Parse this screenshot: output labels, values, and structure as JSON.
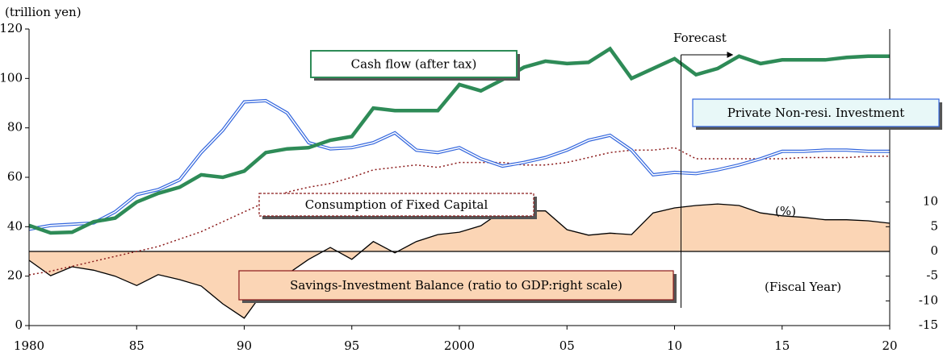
{
  "chart_data": {
    "type": "line",
    "y_unit_label": "(trillion yen)",
    "y2_unit_label": "(%)",
    "x_label": "(Fiscal Year)",
    "annotation": "Forecast",
    "x": [
      1980,
      1981,
      1982,
      1983,
      1984,
      1985,
      1986,
      1987,
      1988,
      1989,
      1990,
      1991,
      1992,
      1993,
      1994,
      1995,
      1996,
      1997,
      1998,
      1999,
      2000,
      2001,
      2002,
      2003,
      2004,
      2005,
      2006,
      2007,
      2008,
      2009,
      2010,
      2011,
      2012,
      2013,
      2014,
      2015,
      2016,
      2017,
      2018,
      2019,
      2020
    ],
    "xlim": [
      1980,
      2020
    ],
    "xticks": [
      {
        "value": 1980,
        "label": "1980"
      },
      {
        "value": 1985,
        "label": "85"
      },
      {
        "value": 1990,
        "label": "90"
      },
      {
        "value": 1995,
        "label": "95"
      },
      {
        "value": 2000,
        "label": "2000"
      },
      {
        "value": 2005,
        "label": "05"
      },
      {
        "value": 2010,
        "label": "10"
      },
      {
        "value": 2015,
        "label": "15"
      },
      {
        "value": 2020,
        "label": "20"
      }
    ],
    "ylim": [
      0,
      120
    ],
    "yticks": [
      0,
      20,
      40,
      60,
      80,
      100,
      120
    ],
    "y2lim": [
      -15,
      45
    ],
    "y2ticks": [
      -15,
      -10,
      -5,
      0,
      5,
      10
    ],
    "forecast_start": 2010.3,
    "series": [
      {
        "name": "Cash flow (after tax)",
        "color": "#2e8b57",
        "style": "thick",
        "values": [
          40.5,
          37.5,
          37.8,
          42,
          43.5,
          50,
          53.5,
          56,
          61,
          60,
          62.5,
          70,
          71.5,
          72,
          75,
          76.5,
          88,
          87,
          87,
          87,
          97.5,
          95,
          99.5,
          104.5,
          107,
          106,
          106.5,
          112,
          100,
          104,
          108,
          101.5,
          104,
          109,
          106,
          107.5,
          107.5,
          107.5,
          108.5,
          109,
          109
        ]
      },
      {
        "name": "Private Non-resi. Investment",
        "color": "#3366dd",
        "style": "double",
        "values": [
          39,
          40.5,
          41,
          41.5,
          46,
          53,
          55,
          59,
          70,
          79,
          90.5,
          91,
          86,
          74,
          71.5,
          72,
          74,
          78,
          71,
          70,
          72,
          67.5,
          64.5,
          66,
          68,
          71,
          75,
          77,
          71,
          61,
          62,
          61.5,
          63,
          65,
          67.5,
          70.5,
          70.5,
          71,
          71,
          70.5,
          70.5
        ]
      },
      {
        "name": "Consumption of Fixed Capital",
        "color": "#8b1a1a",
        "style": "dotted",
        "values": [
          20.5,
          22,
          24,
          26,
          28,
          30,
          32,
          35,
          38,
          42,
          46,
          50,
          54,
          56,
          57.5,
          60,
          63,
          64,
          65,
          64,
          66,
          66,
          66,
          65,
          65,
          66,
          68,
          70,
          71,
          71,
          72,
          67.5,
          67.5,
          67.5,
          67.5,
          67.5,
          68,
          68,
          68,
          68.5,
          68.5
        ]
      },
      {
        "name": "Savings-Investment Balance (ratio to GDP:right scale)",
        "color": "#000000",
        "fill": "#fbd5b5",
        "style": "area",
        "axis": "y2",
        "values": [
          -1.8,
          -4.9,
          -3.1,
          -3.8,
          -5,
          -6.9,
          -4.7,
          -5.7,
          -7,
          -10.6,
          -13.5,
          -7.5,
          -4.6,
          -1.6,
          0.8,
          -1.6,
          2,
          -0.3,
          2,
          3.4,
          3.9,
          5.2,
          8.2,
          8.2,
          8.2,
          4.4,
          3.3,
          3.7,
          3.4,
          7.8,
          8.8,
          9.3,
          9.6,
          9.3,
          7.8,
          7.2,
          6.9,
          6.4,
          6.4,
          6.2,
          5.7
        ]
      }
    ]
  }
}
